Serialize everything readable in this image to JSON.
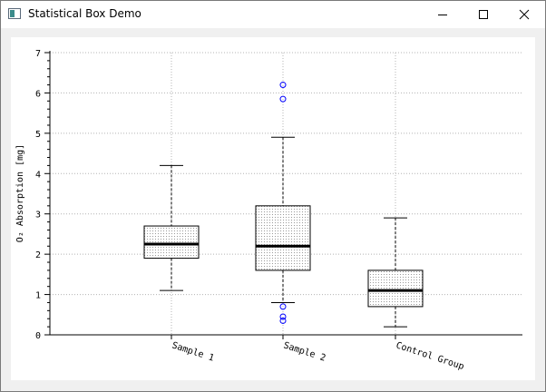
{
  "window": {
    "title": "Statistical Box Demo"
  },
  "icons": {
    "app": "app-window-icon",
    "minimize": "minimize-icon",
    "maximize": "maximize-icon",
    "close": "close-icon"
  },
  "colors": {
    "outlier": "#0000ff",
    "median": "#000000",
    "grid": "#b4b4b4"
  },
  "chart_data": {
    "type": "box",
    "title": "",
    "ylabel": "O₂ Absorption [mg]",
    "xlabel": "",
    "ylim": [
      0,
      7
    ],
    "yticks": [
      "0",
      "1",
      "2",
      "3",
      "4",
      "5",
      "6",
      "7"
    ],
    "grid": true,
    "boxes": [
      {
        "label": "Sample 1",
        "whisker_low": 1.1,
        "q1": 1.9,
        "median": 2.25,
        "q3": 2.7,
        "whisker_high": 4.2,
        "outliers": []
      },
      {
        "label": "Sample 2",
        "whisker_low": 0.8,
        "q1": 1.6,
        "median": 2.2,
        "q3": 3.2,
        "whisker_high": 4.9,
        "outliers": [
          6.2,
          5.85,
          0.7,
          0.45,
          0.35
        ]
      },
      {
        "label": "Control Group",
        "whisker_low": 0.2,
        "q1": 0.7,
        "median": 1.1,
        "q3": 1.6,
        "whisker_high": 2.9,
        "outliers": []
      }
    ]
  }
}
